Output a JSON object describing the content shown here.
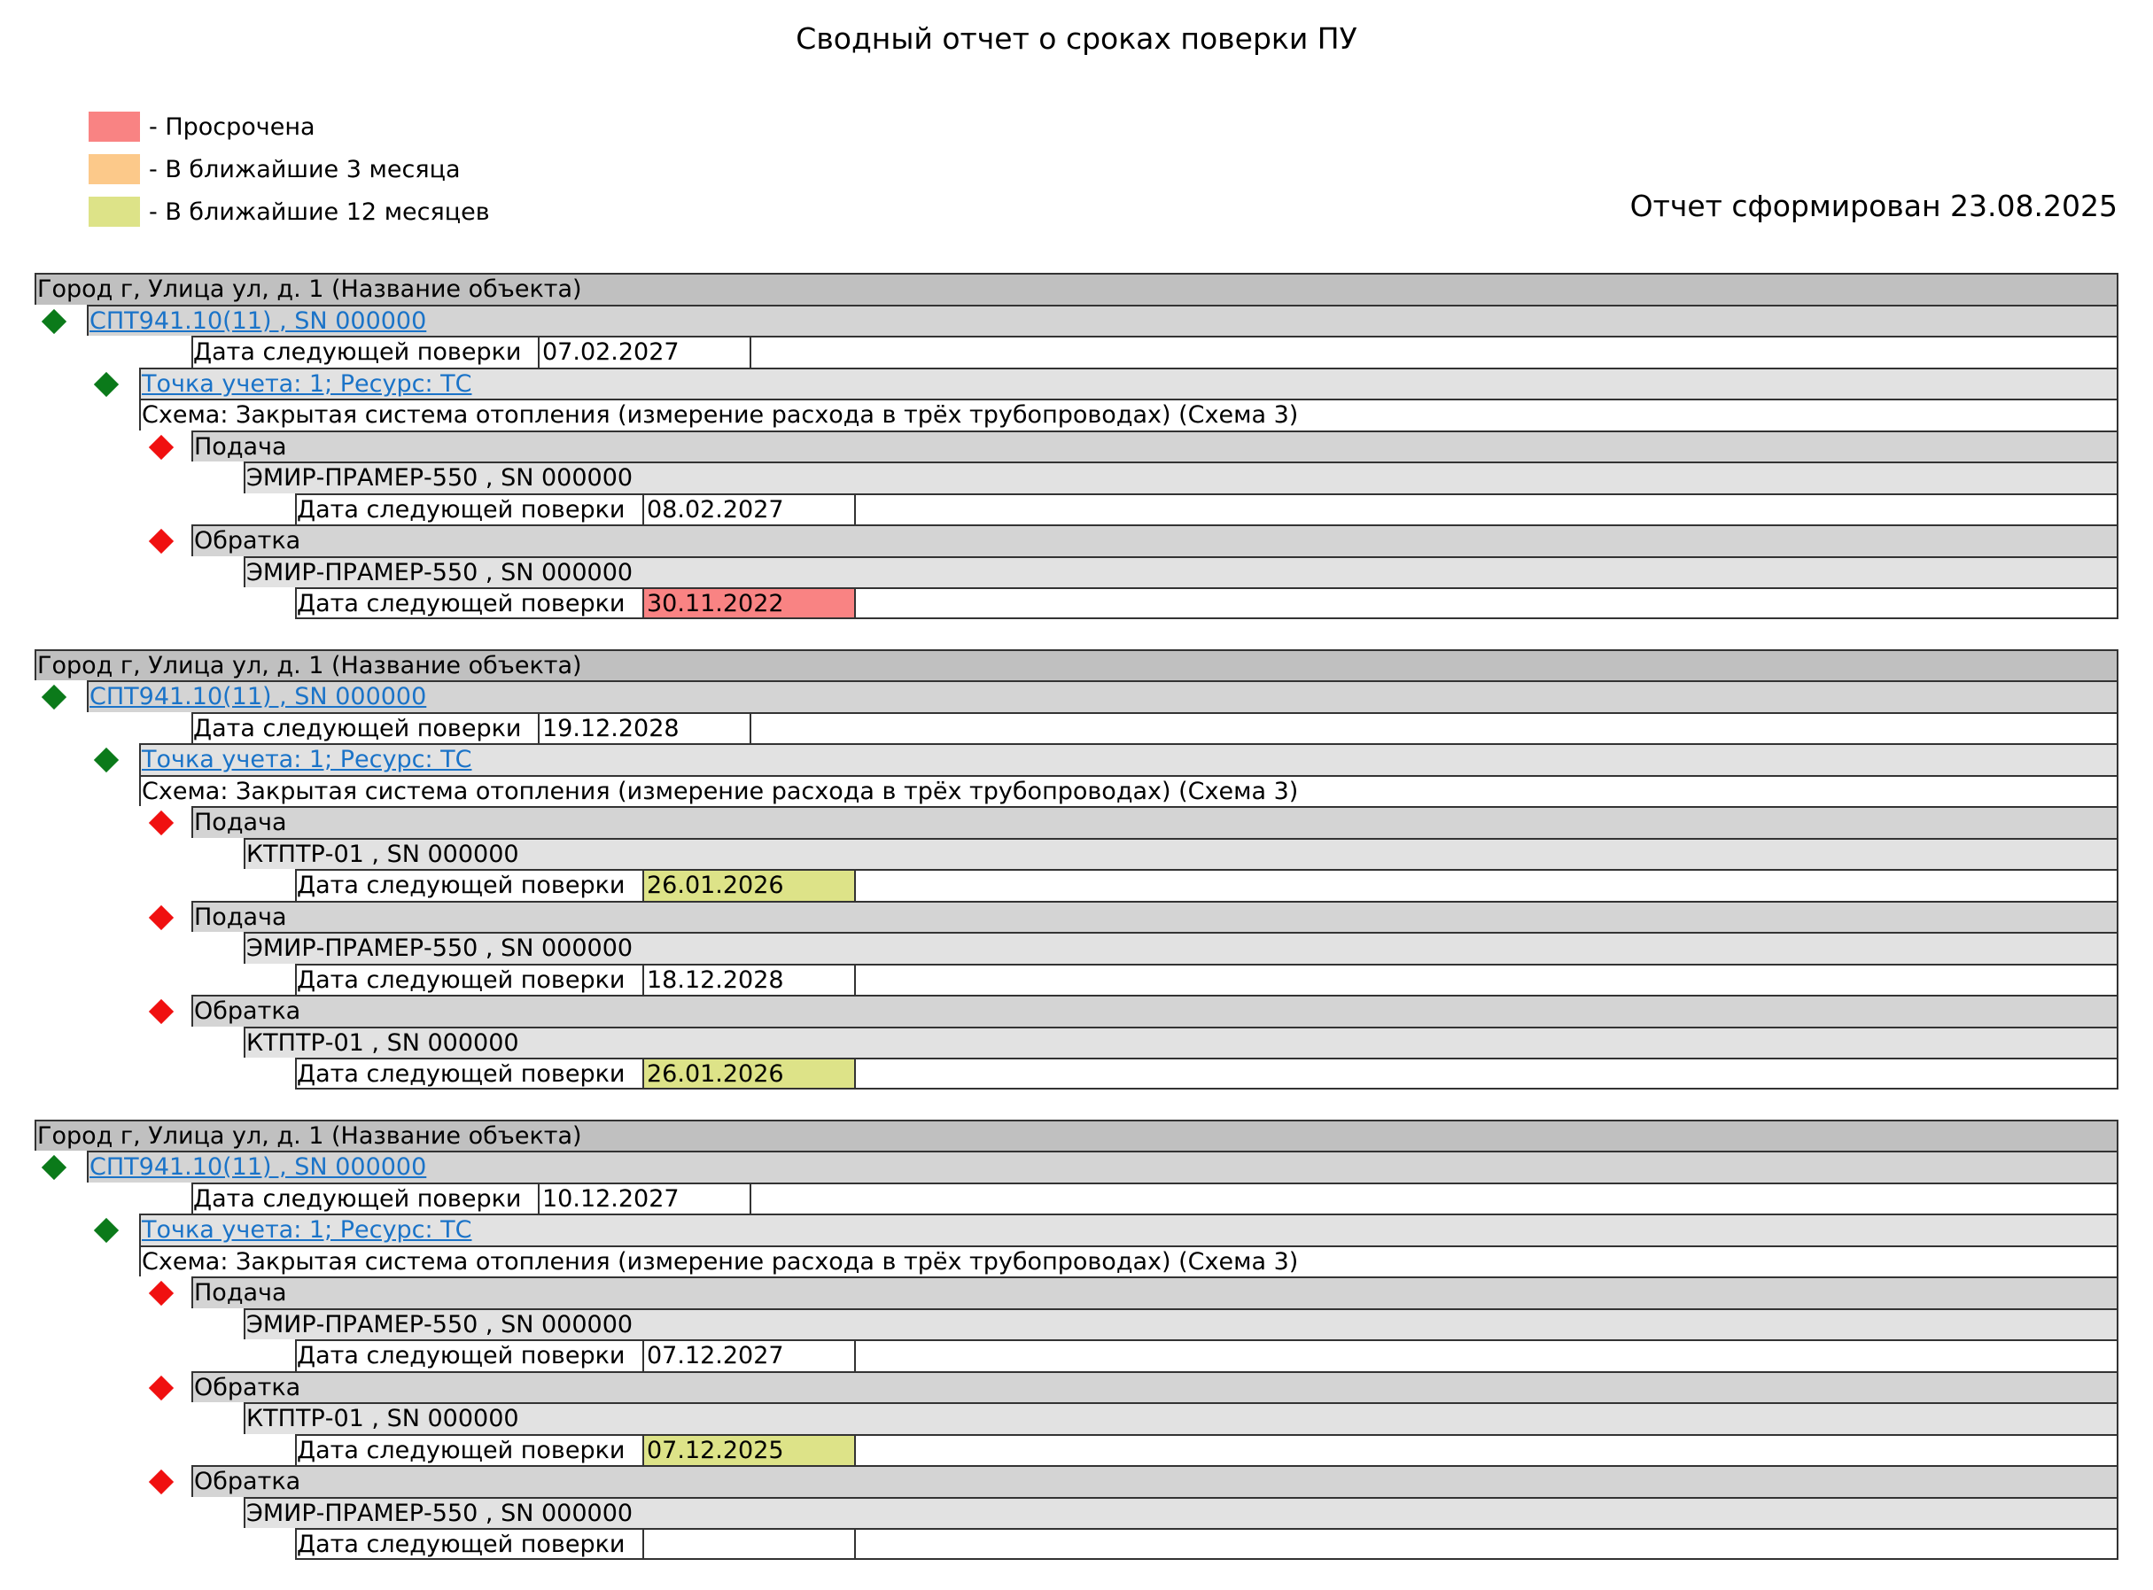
{
  "report": {
    "title": "Сводный отчет о сроках поверки ПУ",
    "generated": "Отчет сформирован 23.08.2025"
  },
  "legend": [
    {
      "label": "- Просрочена",
      "color": "#f98383"
    },
    {
      "label": "- В ближайшие 3 месяца",
      "color": "#fcc98a"
    },
    {
      "label": "- В ближайшие 12 месяцев",
      "color": "#dde388"
    }
  ],
  "colors": {
    "overdue": "#f98383",
    "soon": "#fcc98a",
    "year": "#dde388",
    "link": "#1a73c8",
    "ok_marker": "#0b7a1a",
    "bad_marker": "#f01010"
  },
  "common": {
    "next_check_label": "Дата следующей поверки"
  },
  "blocks": [
    {
      "object": "Город г, Улица ул, д. 1 (Название объекта)",
      "device": "СПТ941.10(11) , SN 000000",
      "device_date": "07.02.2027",
      "point": "Точка учета: 1; Ресурс: ТС",
      "scheme": "Схема: Закрытая система отопления (измерение расхода в трёх трубопроводах) (Схема 3)",
      "channels": [
        {
          "name": "Подача",
          "meter": "ЭМИР-ПРАМЕР-550 , SN 000000",
          "date": "08.02.2027",
          "status": "ok"
        },
        {
          "name": "Обратка",
          "meter": "ЭМИР-ПРАМЕР-550 , SN 000000",
          "date": "30.11.2022",
          "status": "overdue"
        }
      ]
    },
    {
      "object": "Город г, Улица ул, д. 1 (Название объекта)",
      "device": "СПТ941.10(11) , SN 000000",
      "device_date": "19.12.2028",
      "point": "Точка учета: 1; Ресурс: ТС",
      "scheme": "Схема: Закрытая система отопления (измерение расхода в трёх трубопроводах) (Схема 3)",
      "channels": [
        {
          "name": "Подача",
          "meter": "КТПТР-01 , SN 000000",
          "date": "26.01.2026",
          "status": "year"
        },
        {
          "name": "Подача",
          "meter": "ЭМИР-ПРАМЕР-550 , SN 000000",
          "date": "18.12.2028",
          "status": "ok"
        },
        {
          "name": "Обратка",
          "meter": "КТПТР-01 , SN 000000",
          "date": "26.01.2026",
          "status": "year"
        }
      ]
    },
    {
      "object": "Город г, Улица ул, д. 1 (Название объекта)",
      "device": "СПТ941.10(11) , SN 000000",
      "device_date": "10.12.2027",
      "point": "Точка учета: 1; Ресурс: ТС",
      "scheme": "Схема: Закрытая система отопления (измерение расхода в трёх трубопроводах) (Схема 3)",
      "channels": [
        {
          "name": "Подача",
          "meter": "ЭМИР-ПРАМЕР-550 , SN 000000",
          "date": "07.12.2027",
          "status": "ok"
        },
        {
          "name": "Обратка",
          "meter": "КТПТР-01 , SN 000000",
          "date": "07.12.2025",
          "status": "year"
        },
        {
          "name": "Обратка",
          "meter": "ЭМИР-ПРАМЕР-550 , SN 000000",
          "date": "",
          "status": "ok"
        }
      ]
    }
  ]
}
